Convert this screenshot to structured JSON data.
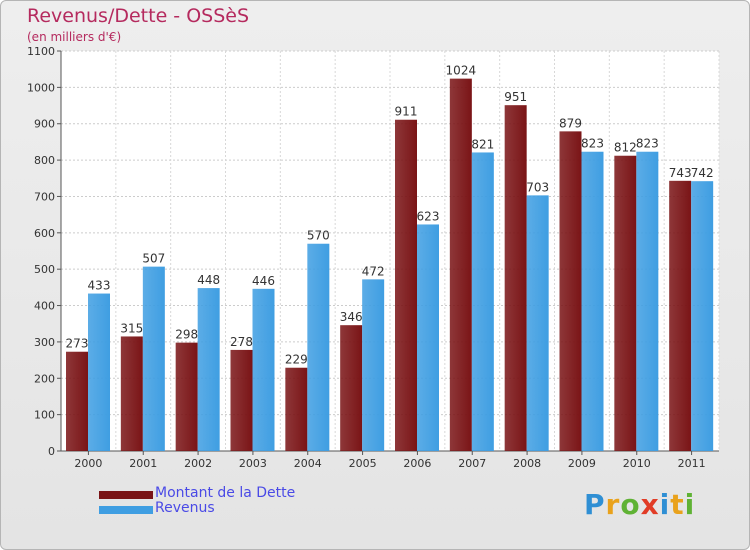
{
  "header": {
    "title": "Revenus/Dette - OSSèS",
    "subtitle": "(en milliers d'€)"
  },
  "chart_data": {
    "type": "bar",
    "categories": [
      "2000",
      "2001",
      "2002",
      "2003",
      "2004",
      "2005",
      "2006",
      "2007",
      "2008",
      "2009",
      "2010",
      "2011"
    ],
    "series": [
      {
        "name": "Montant de la Dette",
        "values": [
          273,
          315,
          298,
          278,
          229,
          346,
          911,
          1024,
          951,
          879,
          812,
          743
        ],
        "color": "#7a1416"
      },
      {
        "name": "Revenus",
        "values": [
          433,
          507,
          448,
          446,
          570,
          472,
          623,
          821,
          703,
          823,
          823,
          742
        ],
        "color": "#3f9ee2"
      }
    ],
    "ylim": [
      0,
      1100
    ],
    "yticks": [
      0,
      100,
      200,
      300,
      400,
      500,
      600,
      700,
      800,
      900,
      1000,
      1100
    ],
    "grid": true,
    "legend_position": "bottom-left"
  },
  "logo": {
    "letters": [
      {
        "char": "P",
        "color": "#2f8fd4"
      },
      {
        "char": "r",
        "color": "#e9a21c"
      },
      {
        "char": "o",
        "color": "#5fb234"
      },
      {
        "char": "x",
        "color": "#e13c26"
      },
      {
        "char": "i",
        "color": "#2f8fd4"
      },
      {
        "char": "t",
        "color": "#e9a21c"
      },
      {
        "char": "i",
        "color": "#5fb234"
      }
    ]
  }
}
